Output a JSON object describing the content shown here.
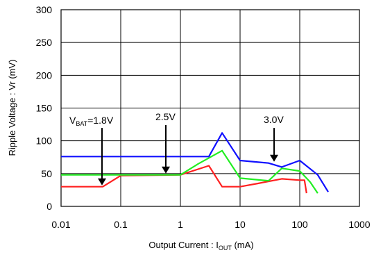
{
  "chart_data": {
    "type": "line",
    "x_scale": "log",
    "xlim": [
      0.01,
      1000
    ],
    "ylim": [
      0,
      300
    ],
    "grid": true,
    "xlabel": {
      "main": "Output Current : I",
      "sub": "OUT",
      "unit": " (mA)"
    },
    "ylabel": "Ripple Voltage : Vr (mV)",
    "x_tick_labels": [
      "0.01",
      "0.1",
      "1",
      "10",
      "100",
      "1000"
    ],
    "x_ticks": [
      0.01,
      0.1,
      1,
      10,
      100,
      1000
    ],
    "y_ticks": [
      0,
      50,
      100,
      150,
      200,
      250,
      300
    ],
    "y_tick_labels": [
      "0",
      "50",
      "100",
      "150",
      "200",
      "250",
      "300"
    ],
    "series": [
      {
        "color": "#ff2020",
        "x": [
          0.01,
          0.05,
          0.1,
          1,
          3,
          5,
          10,
          20,
          50,
          100,
          120,
          130
        ],
        "y": [
          30,
          30,
          47,
          48,
          62,
          30,
          30,
          35,
          42,
          40,
          40,
          20
        ]
      },
      {
        "color": "#22ee22",
        "x": [
          0.01,
          0.1,
          1,
          2,
          5,
          10,
          30,
          50,
          100,
          150,
          200
        ],
        "y": [
          48,
          48,
          48,
          65,
          85,
          43,
          39,
          58,
          54,
          37,
          20
        ]
      },
      {
        "color": "#1010ff",
        "x": [
          0.01,
          0.1,
          1,
          3,
          5,
          10,
          30,
          50,
          100,
          200,
          300
        ],
        "y": [
          76,
          76,
          76,
          76,
          112,
          70,
          66,
          60,
          70,
          48,
          22
        ]
      }
    ],
    "annotations": [
      {
        "main": "V",
        "sub": "BAT",
        "rest": "=1.8V",
        "target_x": 0.045,
        "target_y": 30
      },
      {
        "main": "2.5V",
        "sub": "",
        "rest": "",
        "target_x": 0.6,
        "target_y": 48
      },
      {
        "main": "3.0V",
        "sub": "",
        "rest": "",
        "target_x": 35,
        "target_y": 66
      }
    ]
  }
}
